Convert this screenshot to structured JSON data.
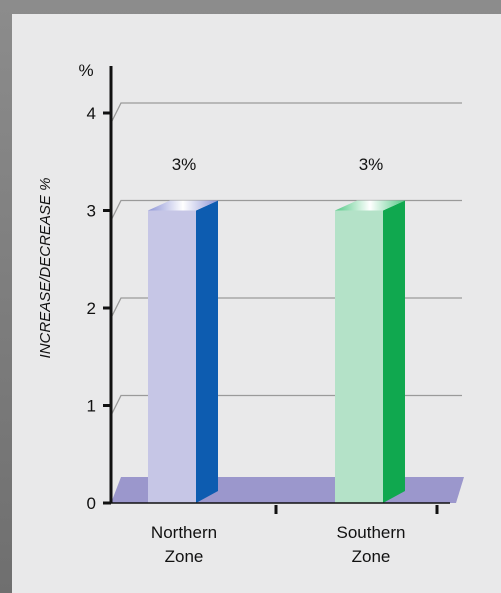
{
  "chart_data": {
    "type": "bar",
    "unit_label": "%",
    "ylabel": "INCREASE/DECREASE %",
    "ylim": [
      0,
      4
    ],
    "y_ticks": [
      0,
      1,
      2,
      3,
      4
    ],
    "y_tick_labels": [
      "0",
      "1",
      "2",
      "3",
      "4"
    ],
    "grid": true,
    "categories": [
      {
        "line1": "Northern",
        "line2": "Zone"
      },
      {
        "line1": "Southern",
        "line2": "Zone"
      }
    ],
    "values": [
      3,
      3
    ],
    "data_labels": [
      "3%",
      "3%"
    ],
    "colors": {
      "bar_front": [
        "#c6c6e6",
        "#b4e2c8"
      ],
      "bar_side": [
        "#0d5cb0",
        "#10a84f"
      ],
      "bar_top": [
        "#8e95d6",
        "#55c987"
      ],
      "floor": "#9b97cc",
      "grid": "#9a9a9a",
      "axis": "#111111"
    }
  }
}
